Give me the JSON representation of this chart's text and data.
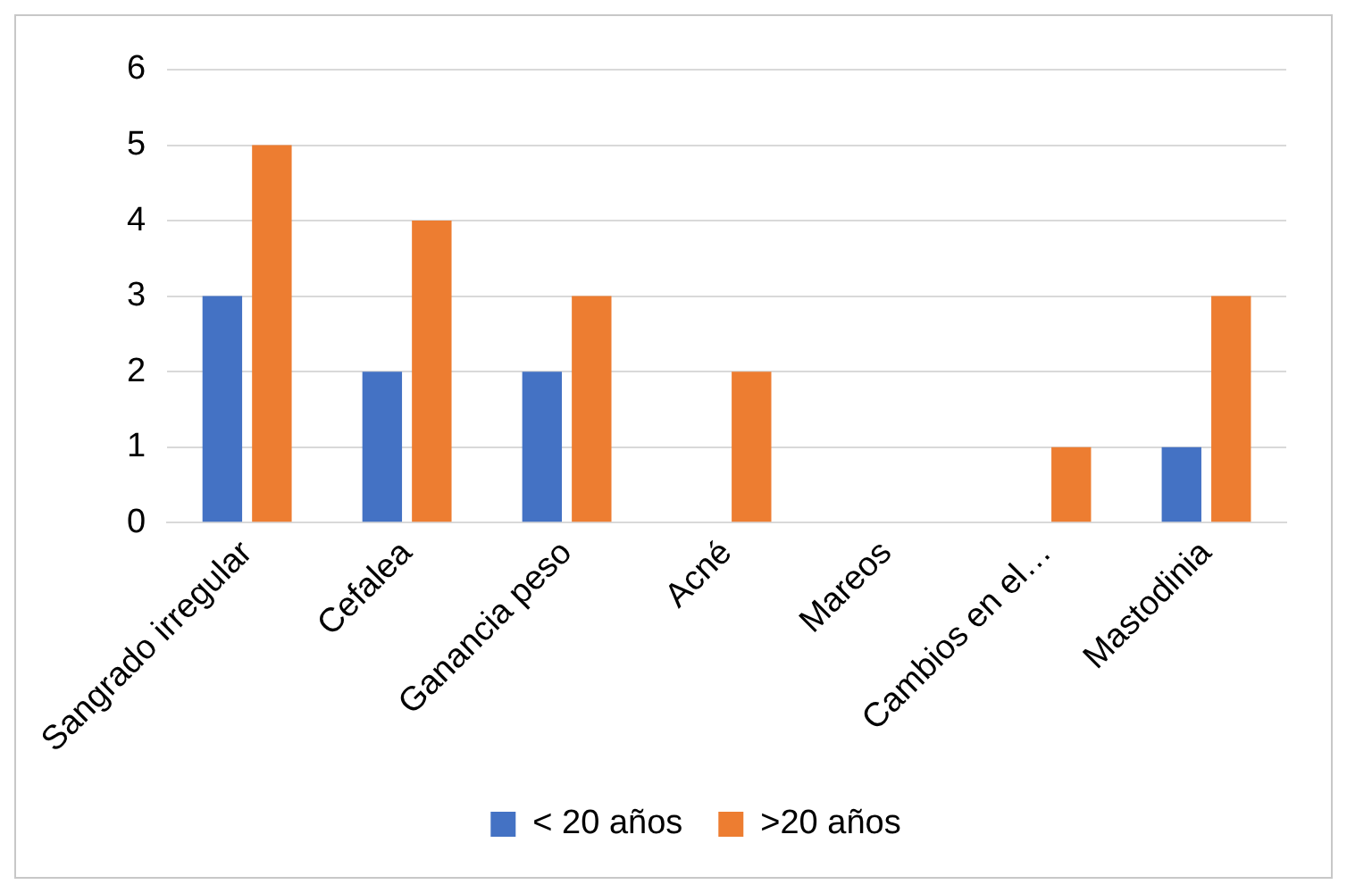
{
  "chart_data": {
    "type": "bar",
    "categories": [
      "Sangrado irregular",
      "Cefalea",
      "Ganancia peso",
      "Acné",
      "Mareos",
      "Cambios en el…",
      "Mastodinia"
    ],
    "series": [
      {
        "name": "< 20 años",
        "color": "#4472c4",
        "values": [
          3,
          2,
          2,
          0,
          0,
          0,
          1
        ]
      },
      {
        "name": ">20 años",
        "color": "#ed7d31",
        "values": [
          5,
          4,
          3,
          2,
          0,
          1,
          3
        ]
      }
    ],
    "ylim": [
      0,
      6
    ],
    "yticks": [
      0,
      1,
      2,
      3,
      4,
      5,
      6
    ],
    "grid": "y",
    "legend": "bottom"
  }
}
